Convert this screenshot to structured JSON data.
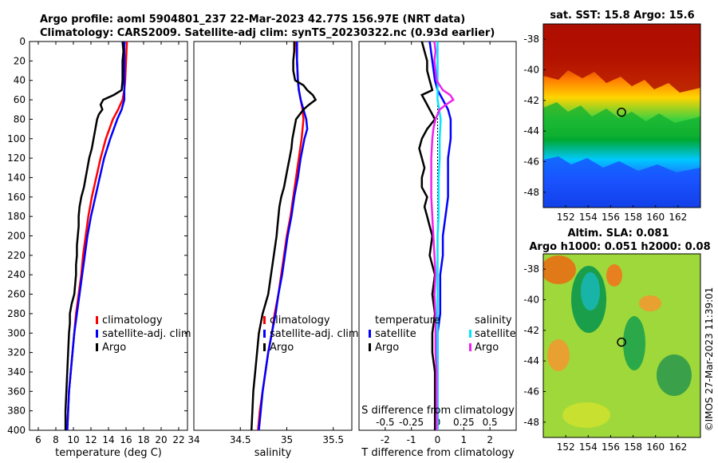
{
  "header": {
    "line1": "Argo profile: aoml 5904801_237 22-Mar-2023 42.77S 156.97E (NRT data)",
    "line2": "Climatology: CARS2009. Satellite-adj clim: synTS_20230322.nc (0.93d earlier)"
  },
  "colors": {
    "climatology": "#ff0000",
    "satellite": "#0000ff",
    "argo": "#000000",
    "sal_sat": "#00e5ff",
    "sal_argo": "#ee22ee"
  },
  "depth_ticks": [
    "0",
    "20",
    "40",
    "60",
    "80",
    "100",
    "120",
    "140",
    "160",
    "180",
    "200",
    "220",
    "240",
    "260",
    "280",
    "300",
    "320",
    "340",
    "360",
    "380",
    "400"
  ],
  "chart_data": [
    {
      "id": "temperature",
      "type": "line",
      "xlabel": "temperature (deg C)",
      "ylabel": "depth",
      "xlim": [
        5,
        23
      ],
      "ylim": [
        400,
        0
      ],
      "xticks": [
        "6",
        "8",
        "10",
        "12",
        "14",
        "16",
        "18",
        "20",
        "22"
      ],
      "xtick_values": [
        6,
        8,
        10,
        12,
        14,
        16,
        18,
        20,
        22
      ],
      "legend": [
        "climatology",
        "satellite-adj. clim",
        "Argo"
      ],
      "series": [
        {
          "name": "climatology",
          "color": "#ff0000",
          "depth": [
            0,
            20,
            40,
            50,
            60,
            70,
            80,
            100,
            120,
            140,
            160,
            180,
            200,
            220,
            240,
            260,
            280,
            300,
            320,
            340,
            360,
            380,
            400
          ],
          "values": [
            16.1,
            16.0,
            15.9,
            15.8,
            15.6,
            15.1,
            14.5,
            13.7,
            13.1,
            12.6,
            12.1,
            11.7,
            11.4,
            11.1,
            10.9,
            10.6,
            10.3,
            10.1,
            9.9,
            9.7,
            9.5,
            9.4,
            9.3
          ]
        },
        {
          "name": "satellite-adj. clim",
          "color": "#0000ff",
          "depth": [
            0,
            20,
            40,
            50,
            60,
            70,
            80,
            100,
            120,
            140,
            160,
            180,
            200,
            220,
            240,
            260,
            280,
            300,
            320,
            340,
            360,
            380,
            400
          ],
          "values": [
            15.8,
            15.8,
            15.8,
            15.8,
            15.8,
            15.5,
            15.0,
            14.2,
            13.5,
            13.0,
            12.5,
            12.0,
            11.6,
            11.3,
            11.0,
            10.7,
            10.4,
            10.1,
            9.9,
            9.7,
            9.5,
            9.4,
            9.3
          ]
        },
        {
          "name": "Argo",
          "color": "#000000",
          "depth": [
            0,
            10,
            20,
            30,
            40,
            50,
            55,
            60,
            65,
            70,
            75,
            80,
            90,
            100,
            110,
            120,
            130,
            140,
            150,
            160,
            170,
            180,
            190,
            200,
            210,
            220,
            230,
            240,
            250,
            260,
            270,
            280,
            290,
            300,
            320,
            340,
            360,
            380,
            400
          ],
          "values": [
            15.6,
            15.7,
            15.6,
            15.6,
            15.6,
            15.5,
            14.6,
            13.4,
            13.1,
            13.3,
            12.9,
            12.7,
            12.5,
            12.3,
            12.1,
            11.8,
            11.6,
            11.4,
            11.2,
            10.9,
            10.7,
            10.6,
            10.6,
            10.5,
            10.4,
            10.4,
            10.3,
            10.3,
            10.2,
            10.1,
            9.8,
            9.6,
            9.6,
            9.5,
            9.4,
            9.3,
            9.2,
            9.1,
            9.1
          ]
        }
      ]
    },
    {
      "id": "salinity",
      "type": "line",
      "xlabel": "salinity",
      "ylabel": "depth",
      "xlim": [
        34.0,
        35.7
      ],
      "ylim": [
        400,
        0
      ],
      "xticks": [
        "34",
        "34.5",
        "35",
        "35.5"
      ],
      "xtick_values": [
        34,
        34.5,
        35,
        35.5
      ],
      "legend": [
        "climatology",
        "satellite-adj. clim",
        "Argo"
      ],
      "series": [
        {
          "name": "climatology",
          "color": "#ff0000",
          "depth": [
            0,
            20,
            40,
            50,
            60,
            70,
            80,
            100,
            120,
            140,
            160,
            180,
            200,
            220,
            240,
            260,
            280,
            300,
            320,
            340,
            360,
            380,
            400
          ],
          "values": [
            35.1,
            35.11,
            35.12,
            35.13,
            35.15,
            35.17,
            35.18,
            35.16,
            35.13,
            35.1,
            35.07,
            35.04,
            35.0,
            34.97,
            34.94,
            34.91,
            34.87,
            34.84,
            34.8,
            34.77,
            34.74,
            34.71,
            34.69
          ]
        },
        {
          "name": "satellite-adj. clim",
          "color": "#0000ff",
          "depth": [
            0,
            20,
            40,
            50,
            60,
            70,
            80,
            90,
            100,
            120,
            140,
            160,
            180,
            200,
            220,
            240,
            260,
            280,
            300,
            320,
            340,
            360,
            380,
            400
          ],
          "values": [
            35.11,
            35.11,
            35.12,
            35.13,
            35.15,
            35.18,
            35.21,
            35.22,
            35.19,
            35.15,
            35.12,
            35.08,
            35.05,
            35.01,
            34.98,
            34.95,
            34.91,
            34.88,
            34.84,
            34.8,
            34.77,
            34.74,
            34.72,
            34.7
          ]
        },
        {
          "name": "Argo",
          "color": "#000000",
          "depth": [
            0,
            10,
            20,
            30,
            40,
            45,
            50,
            55,
            60,
            65,
            70,
            80,
            90,
            100,
            110,
            120,
            130,
            140,
            150,
            160,
            170,
            180,
            190,
            200,
            220,
            240,
            260,
            280,
            300,
            320,
            340,
            360,
            380,
            400
          ],
          "values": [
            35.08,
            35.08,
            35.07,
            35.07,
            35.09,
            35.18,
            35.22,
            35.28,
            35.31,
            35.24,
            35.18,
            35.1,
            35.08,
            35.06,
            35.05,
            35.03,
            35.01,
            34.99,
            34.97,
            34.94,
            34.92,
            34.91,
            34.9,
            34.89,
            34.86,
            34.83,
            34.8,
            34.74,
            34.7,
            34.68,
            34.66,
            34.64,
            34.63,
            34.62
          ]
        }
      ]
    },
    {
      "id": "differences",
      "type": "line",
      "xlabel": "T difference from climatology",
      "top_label": "S difference from climatology",
      "ylabel": "depth",
      "xlim": [
        -3,
        3
      ],
      "ylim": [
        400,
        0
      ],
      "xticks": [
        "-2",
        "-1",
        "0",
        "1",
        "2"
      ],
      "xtick_values": [
        -2,
        -1,
        0,
        1,
        2
      ],
      "s_xticks": [
        "-0.5",
        "-0.25",
        "0",
        "0.25",
        "0.5"
      ],
      "s_xtick_values": [
        -0.5,
        -0.25,
        0,
        0.25,
        0.5
      ],
      "legend_temperature": [
        "temperature",
        "satellite",
        "Argo"
      ],
      "legend_salinity": [
        "salinity",
        "satellite",
        "Argo"
      ],
      "series": [
        {
          "name": "temperature satellite",
          "color": "#0000ff",
          "depth": [
            0,
            20,
            40,
            50,
            60,
            70,
            80,
            100,
            120,
            140,
            160,
            180,
            200,
            220,
            240,
            260,
            280,
            300,
            320,
            340,
            360,
            380,
            400
          ],
          "values": [
            -0.3,
            -0.2,
            -0.1,
            0.0,
            0.2,
            0.4,
            0.5,
            0.5,
            0.4,
            0.4,
            0.4,
            0.3,
            0.2,
            0.2,
            0.1,
            0.1,
            0.1,
            0.0,
            0.0,
            0.0,
            0.0,
            0.0,
            0.0
          ]
        },
        {
          "name": "temperature Argo",
          "color": "#000000",
          "depth": [
            0,
            10,
            20,
            30,
            40,
            50,
            55,
            60,
            65,
            70,
            80,
            90,
            100,
            110,
            120,
            130,
            140,
            150,
            160,
            170,
            180,
            190,
            200,
            220,
            240,
            260,
            280,
            300,
            320,
            340,
            360,
            380,
            400
          ],
          "values": [
            -0.6,
            -0.5,
            -0.4,
            -0.4,
            -0.3,
            -0.2,
            -0.6,
            -0.5,
            -0.4,
            -0.3,
            -0.1,
            -0.4,
            -0.6,
            -0.7,
            -0.6,
            -0.5,
            -0.6,
            -0.6,
            -0.4,
            -0.5,
            -0.4,
            -0.3,
            -0.2,
            -0.3,
            -0.1,
            -0.2,
            -0.1,
            -0.2,
            -0.2,
            -0.1,
            -0.1,
            -0.1,
            -0.1
          ]
        },
        {
          "name": "salinity satellite",
          "color": "#00e5ff",
          "depth": [
            0,
            20,
            40,
            60,
            80,
            100,
            120,
            140,
            160,
            180,
            200,
            240,
            280,
            320,
            360,
            400
          ],
          "values": [
            0.0,
            0.0,
            0.0,
            0.0,
            0.03,
            0.02,
            0.02,
            0.01,
            0.01,
            0.01,
            0.0,
            0.0,
            0.0,
            0.0,
            0.0,
            0.0
          ]
        },
        {
          "name": "salinity Argo",
          "color": "#ee22ee",
          "depth": [
            0,
            10,
            20,
            30,
            40,
            45,
            50,
            55,
            60,
            65,
            70,
            80,
            90,
            100,
            120,
            140,
            160,
            180,
            200,
            220,
            240,
            260,
            280,
            300,
            320,
            340,
            360,
            380,
            400
          ],
          "values": [
            -0.03,
            -0.02,
            -0.03,
            -0.02,
            -0.01,
            0.02,
            0.05,
            0.12,
            0.15,
            0.08,
            0.02,
            -0.02,
            -0.04,
            -0.05,
            -0.06,
            -0.06,
            -0.06,
            -0.05,
            -0.04,
            -0.03,
            -0.02,
            -0.03,
            -0.02,
            -0.02,
            -0.02,
            -0.01,
            -0.01,
            -0.01,
            -0.01
          ]
        }
      ]
    },
    {
      "id": "sst_map",
      "type": "heatmap",
      "title": "sat. SST: 15.8 Argo: 15.6",
      "xticks": [
        "152",
        "154",
        "156",
        "158",
        "160",
        "162"
      ],
      "xtick_values": [
        152,
        154,
        156,
        158,
        160,
        162
      ],
      "yticks": [
        "-38",
        "-40",
        "-42",
        "-44",
        "-46",
        "-48"
      ],
      "ytick_values": [
        -38,
        -40,
        -42,
        -44,
        -46,
        -48
      ],
      "xlim": [
        150,
        164
      ],
      "ylim": [
        -49,
        -37
      ],
      "marker": [
        156.97,
        -42.77
      ]
    },
    {
      "id": "sla_map",
      "type": "heatmap",
      "title_line1": "Altim. SLA: 0.081",
      "title_line2": "Argo h1000: 0.051 h2000: 0.08",
      "xticks": [
        "152",
        "154",
        "156",
        "158",
        "160",
        "162"
      ],
      "xtick_values": [
        152,
        154,
        156,
        158,
        160,
        162
      ],
      "yticks": [
        "-38",
        "-40",
        "-42",
        "-44",
        "-46",
        "-48"
      ],
      "ytick_values": [
        -38,
        -40,
        -42,
        -44,
        -46,
        -48
      ],
      "xlim": [
        150,
        164
      ],
      "ylim": [
        -49,
        -37
      ],
      "marker": [
        156.97,
        -42.77
      ]
    }
  ],
  "footer_stamp": "©IMOS 27-Mar-2023 11:39:01"
}
